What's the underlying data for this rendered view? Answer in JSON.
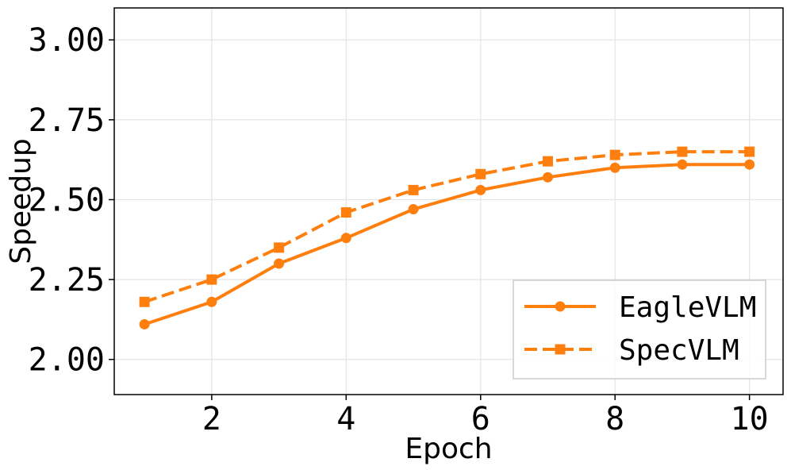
{
  "chart_data": {
    "type": "line",
    "title": "",
    "xlabel": "Epoch",
    "ylabel": "Speedup",
    "x": [
      1,
      2,
      3,
      4,
      5,
      6,
      7,
      8,
      9,
      10
    ],
    "xlim": [
      0.55,
      10.5
    ],
    "ylim": [
      1.89,
      3.1
    ],
    "xticks": [
      2,
      4,
      6,
      8,
      10
    ],
    "xtick_labels": [
      "2",
      "4",
      "6",
      "8",
      "10"
    ],
    "yticks": [
      2.0,
      2.25,
      2.5,
      2.75,
      3.0
    ],
    "ytick_labels": [
      "2.00",
      "2.25",
      "2.50",
      "2.75",
      "3.00"
    ],
    "grid": true,
    "legend_position": "lower-right",
    "series": [
      {
        "name": "EagleVLM",
        "values": [
          2.11,
          2.18,
          2.3,
          2.38,
          2.47,
          2.53,
          2.57,
          2.6,
          2.61,
          2.61
        ],
        "color": "#ff7f0e",
        "line_style": "solid",
        "marker": "circle"
      },
      {
        "name": "SpecVLM",
        "values": [
          2.18,
          2.25,
          2.35,
          2.46,
          2.53,
          2.58,
          2.62,
          2.64,
          2.65,
          2.65
        ],
        "color": "#ff7f0e",
        "line_style": "dashed",
        "marker": "square"
      }
    ]
  }
}
